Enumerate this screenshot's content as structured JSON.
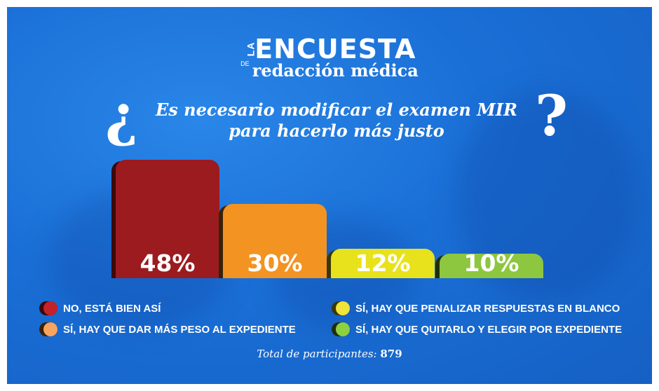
{
  "logo": {
    "la": "LA",
    "encuesta": "ENCUESTA",
    "de": "DE",
    "brand": "redacción médica"
  },
  "question": {
    "open": "¿",
    "text_line1": "Es necesario modificar el examen MIR",
    "text_line2": "para hacerlo más justo",
    "close": "?"
  },
  "chart_data": {
    "type": "bar",
    "categories": [
      "NO, ESTÁ BIEN ASÍ",
      "SÍ, HAY QUE DAR MÁS PESO AL EXPEDIENTE",
      "SÍ, HAY QUE PENALIZAR RESPUESTAS EN BLANCO",
      "SÍ, HAY QUE QUITARLO Y ELEGIR POR EXPEDIENTE"
    ],
    "values": [
      48,
      30,
      12,
      10
    ],
    "data_labels": [
      "48%",
      "30%",
      "12%",
      "10%"
    ],
    "colors": [
      "#9b1b1f",
      "#f39322",
      "#e8e21c",
      "#8dc63f"
    ],
    "shadow_colors": [
      "#3a0a0c",
      "#3a2208",
      "#3a380a",
      "#1e2e0c"
    ],
    "legend_colors": [
      "#c4222a",
      "#f7a460",
      "#f0e43a",
      "#8ed140"
    ],
    "grid": false,
    "legend": "bottom"
  },
  "footer": {
    "label": "Total de participantes:",
    "value": "879"
  }
}
